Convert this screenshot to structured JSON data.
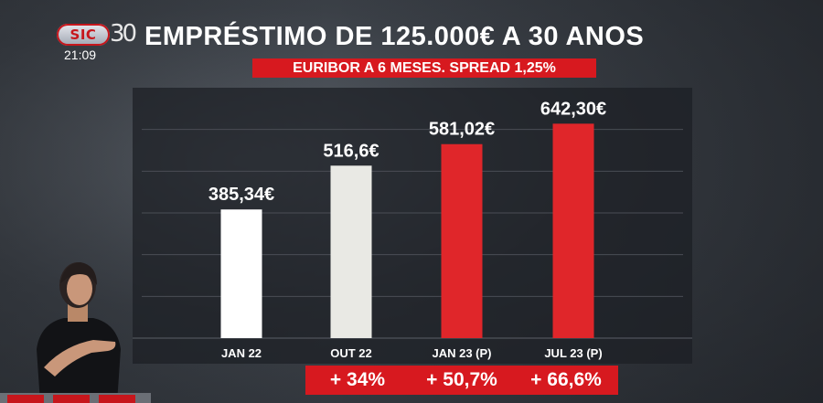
{
  "broadcast": {
    "logo_text": "SIC",
    "anniversary_text": "30",
    "clock": "21:09"
  },
  "chart_data": {
    "type": "bar",
    "title": "EMPRÉSTIMO DE 125.000€ A 30 ANOS",
    "subtitle": "EURIBOR A 6 MESES. SPREAD 1,25%",
    "categories": [
      "JAN 22",
      "OUT 22",
      "JAN 23 (P)",
      "JUL 23 (P)"
    ],
    "values": [
      385.34,
      516.6,
      581.02,
      642.3
    ],
    "value_labels": [
      "385,34€",
      "516,6€",
      "581,02€",
      "642,30€"
    ],
    "bar_colors": [
      "#ffffff",
      "#e9e9e4",
      "#e0262a",
      "#e0262a"
    ],
    "changes": [
      "+ 34%",
      "+ 50,7%",
      "+ 66,6%"
    ],
    "unit": "€",
    "xlabel": "",
    "ylabel": "",
    "ylim": [
      0,
      750
    ],
    "grid": true,
    "colors": {
      "accent_red": "#d7191f",
      "panel": "#1c1e24",
      "gridline": "#4a4d55"
    }
  }
}
